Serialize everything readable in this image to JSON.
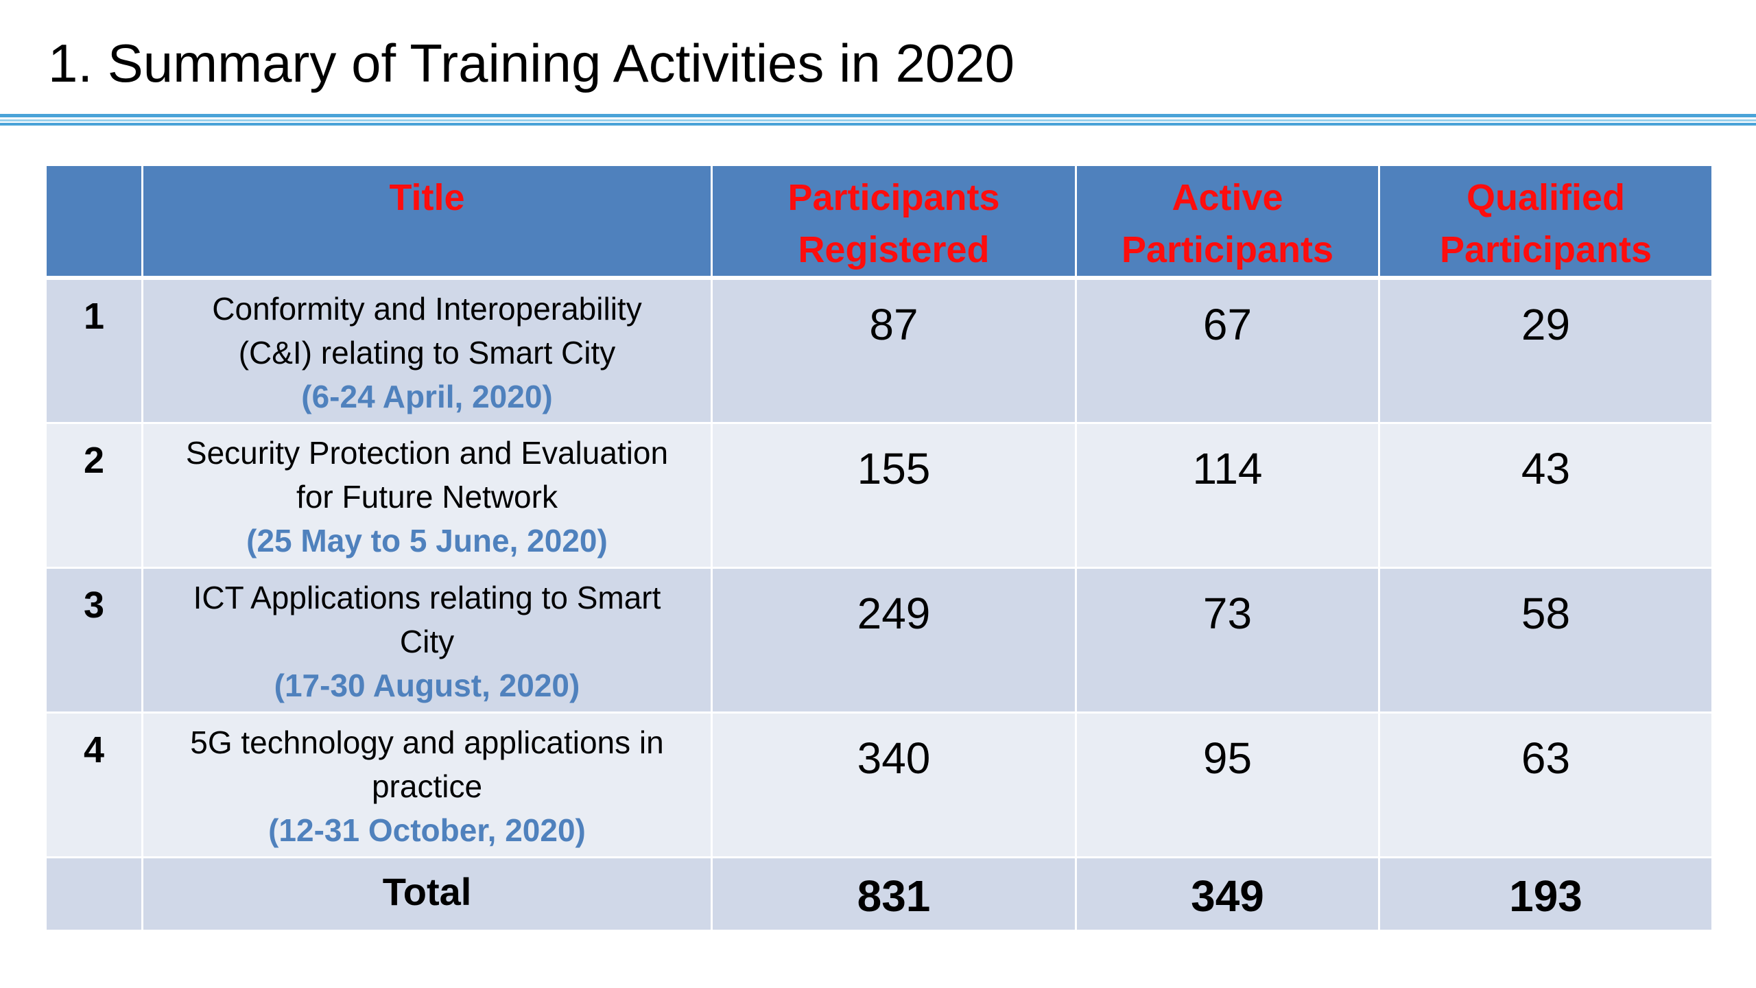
{
  "slide": {
    "title": "1. Summary of Training Activities in 2020"
  },
  "table": {
    "headers": {
      "num": "",
      "title": "Title",
      "registered_line1": "Participants",
      "registered_line2": "Registered",
      "active_line1": "Active",
      "active_line2": "Participants",
      "qualified_line1": "Qualified",
      "qualified_line2": "Participants"
    },
    "rows": [
      {
        "num": "1",
        "title_line1": "Conformity and Interoperability",
        "title_line2": "(C&I) relating to Smart City",
        "date": "(6-24 April, 2020)",
        "registered": "87",
        "active": "67",
        "qualified": "29"
      },
      {
        "num": "2",
        "title_line1": "Security Protection and Evaluation",
        "title_line2": "for Future Network",
        "date": "(25 May to 5 June, 2020)",
        "registered": "155",
        "active": "114",
        "qualified": "43"
      },
      {
        "num": "3",
        "title_line1": "ICT Applications relating to Smart",
        "title_line2": "City",
        "date": "(17-30 August, 2020)",
        "registered": "249",
        "active": "73",
        "qualified": "58"
      },
      {
        "num": "4",
        "title_line1": "5G technology and applications in",
        "title_line2": "practice",
        "date": "(12-31 October, 2020)",
        "registered": "340",
        "active": "95",
        "qualified": "63"
      }
    ],
    "total": {
      "label": "Total",
      "registered": "831",
      "active": "349",
      "qualified": "193"
    }
  },
  "colors": {
    "header_bg": "#4f81bd",
    "header_text": "#ff0d0d",
    "row_dark": "#d0d8e8",
    "row_light": "#e9edf4",
    "date_text": "#4f81bd",
    "title_rule": "#4aa3d8"
  }
}
